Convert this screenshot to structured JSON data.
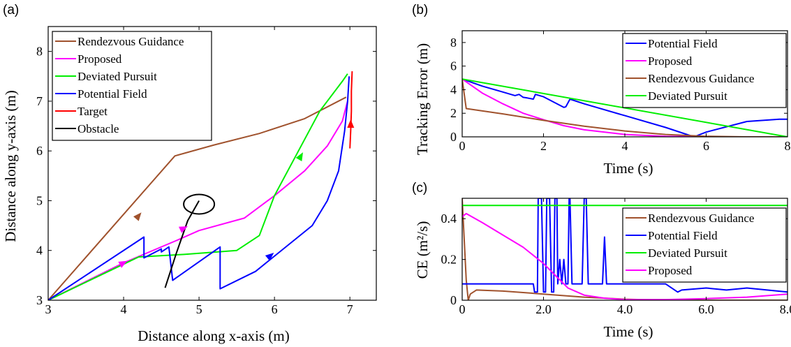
{
  "panels": [
    {
      "tag": "(a)",
      "chart_data": {
        "type": "line",
        "title": "",
        "xlabel": "Distance along x-axis (m)",
        "ylabel": "Distance along y-axis (m)",
        "xlim": [
          3,
          7.35
        ],
        "ylim": [
          3,
          8.5
        ],
        "xticks": [
          3,
          4,
          5,
          6,
          7
        ],
        "yticks": [
          3,
          4,
          5,
          6,
          7,
          8
        ],
        "grid": false,
        "legend_position": "top-left",
        "series": [
          {
            "name": "Rendezvous Guidance",
            "color": "#a0522d",
            "x": [
              3,
              4.68,
              5.2,
              5.8,
              6.4,
              6.95
            ],
            "y": [
              3,
              5.9,
              6.12,
              6.35,
              6.65,
              7.08
            ]
          },
          {
            "name": "Proposed",
            "color": "#ff00ff",
            "x": [
              3,
              4.0,
              4.7,
              5.0,
              5.6,
              6.0,
              6.4,
              6.7,
              6.9,
              6.97
            ],
            "y": [
              3,
              3.75,
              4.2,
              4.4,
              4.65,
              5.1,
              5.6,
              6.1,
              6.6,
              7.0
            ]
          },
          {
            "name": "Deviated Pursuit",
            "color": "#00ee00",
            "x": [
              3,
              4.2,
              4.8,
              5.5,
              5.8,
              6.0,
              6.3,
              6.6,
              6.9,
              6.97
            ],
            "y": [
              3,
              3.87,
              3.92,
              4.0,
              4.3,
              5.1,
              5.95,
              6.8,
              7.4,
              7.55
            ]
          },
          {
            "name": "Potential Field",
            "color": "#0000ff",
            "x": [
              3,
              4.27,
              4.27,
              4.5,
              4.5,
              4.6,
              4.65,
              5.28,
              5.28,
              5.75,
              6.5,
              6.7,
              6.85,
              6.93,
              6.97,
              6.99
            ],
            "y": [
              3,
              4.27,
              3.85,
              4.03,
              3.97,
              4.07,
              3.4,
              4.07,
              3.23,
              3.58,
              4.5,
              5.0,
              5.6,
              6.4,
              7.0,
              7.5
            ]
          },
          {
            "name": "Target",
            "color": "#ff0000",
            "x": [
              7.03,
              7.02,
              7.02,
              7.01,
              7.0
            ],
            "y": [
              7.6,
              7.2,
              6.8,
              6.4,
              6.05
            ]
          },
          {
            "name": "Obstacle",
            "color": "#000000",
            "x": [
              4.55,
              4.7,
              4.85,
              5.0
            ],
            "y": [
              3.25,
              3.95,
              4.6,
              5.0
            ]
          }
        ]
      }
    },
    {
      "tag": "(b)",
      "chart_data": {
        "type": "line",
        "title": "",
        "xlabel": "Time (s)",
        "ylabel": "Tracking Error (m)",
        "xlim": [
          0,
          8
        ],
        "ylim": [
          0,
          9
        ],
        "xticks": [
          0,
          2,
          4,
          6,
          8
        ],
        "yticks": [
          0,
          2,
          4,
          6,
          8
        ],
        "grid": false,
        "legend_position": "top-right",
        "series": [
          {
            "name": "Potential Field",
            "color": "#0000ff",
            "x": [
              0,
              0.5,
              1.0,
              1.3,
              1.4,
              1.5,
              1.6,
              1.75,
              1.8,
              2.0,
              2.5,
              2.55,
              2.65,
              3.0,
              4.0,
              5.0,
              5.7,
              6.0,
              7.0,
              7.8,
              8.0
            ],
            "y": [
              4.9,
              4.3,
              3.8,
              3.5,
              3.6,
              3.35,
              3.3,
              3.2,
              3.6,
              3.4,
              2.5,
              2.55,
              3.2,
              2.8,
              1.8,
              0.8,
              0.0,
              0.4,
              1.3,
              1.5,
              1.5
            ]
          },
          {
            "name": "Proposed",
            "color": "#ff00ff",
            "x": [
              0,
              0.5,
              1.0,
              1.5,
              2.0,
              2.5,
              3.0,
              4.0,
              5.0,
              6.0,
              7.0,
              8.0
            ],
            "y": [
              4.9,
              3.7,
              2.8,
              2.0,
              1.45,
              0.95,
              0.6,
              0.2,
              0.05,
              0.0,
              0.0,
              0.0
            ]
          },
          {
            "name": "Rendezvous Guidance",
            "color": "#a0522d",
            "x": [
              0,
              0.1,
              1.0,
              2.0,
              3.0,
              4.0,
              5.0,
              6.0,
              7.0,
              8.0
            ],
            "y": [
              4.9,
              2.4,
              1.95,
              1.4,
              0.9,
              0.5,
              0.2,
              0.05,
              0.0,
              0.0
            ]
          },
          {
            "name": "Deviated Pursuit",
            "color": "#00ee00",
            "x": [
              0,
              8.0
            ],
            "y": [
              4.9,
              0.0
            ]
          }
        ]
      }
    },
    {
      "tag": "(c)",
      "chart_data": {
        "type": "line",
        "title": "",
        "xlabel": "Time (s)",
        "ylabel": "CE (m²/s)",
        "xlim": [
          0,
          8
        ],
        "ylim": [
          0,
          0.5
        ],
        "xticks": [
          0,
          2,
          4,
          6,
          8
        ],
        "yticks": [
          0,
          0.2,
          0.4
        ],
        "grid": false,
        "legend_position": "bottom-right",
        "series": [
          {
            "name": "Rendezvous Guidance",
            "color": "#a0522d",
            "x": [
              0,
              0.05,
              0.1,
              0.15,
              0.2,
              0.35,
              1.0,
              2.0,
              3.0,
              4.0,
              5.0,
              6.0,
              7.0,
              8.0
            ],
            "y": [
              0.5,
              0.3,
              0.1,
              0.0,
              0.03,
              0.05,
              0.045,
              0.03,
              0.015,
              0.005,
              0.0,
              0.0,
              0.0,
              0.0
            ]
          },
          {
            "name": "Potential Field",
            "color": "#0000ff",
            "x": [
              0,
              1.75,
              1.78,
              1.85,
              1.87,
              1.95,
              2.0,
              2.05,
              2.08,
              2.15,
              2.2,
              2.25,
              2.28,
              2.33,
              2.35,
              2.4,
              2.45,
              2.5,
              2.55,
              2.6,
              2.63,
              2.65,
              2.7,
              2.95,
              3.0,
              3.05,
              3.1,
              3.45,
              3.5,
              3.55,
              5.0,
              5.3,
              5.4,
              6.0,
              6.5,
              7.0,
              7.5,
              8.0
            ],
            "y": [
              0.08,
              0.08,
              0.04,
              0.04,
              0.5,
              0.5,
              0.04,
              0.04,
              0.5,
              0.5,
              0.04,
              0.04,
              0.5,
              0.5,
              0.08,
              0.2,
              0.08,
              0.2,
              0.08,
              0.08,
              0.5,
              0.5,
              0.08,
              0.08,
              0.5,
              0.5,
              0.08,
              0.08,
              0.31,
              0.08,
              0.08,
              0.04,
              0.05,
              0.06,
              0.05,
              0.06,
              0.05,
              0.04
            ]
          },
          {
            "name": "Deviated Pursuit",
            "color": "#00ee00",
            "x": [
              0,
              8.0
            ],
            "y": [
              0.465,
              0.465
            ]
          },
          {
            "name": "Proposed",
            "color": "#ff00ff",
            "x": [
              0,
              0.1,
              0.5,
              1.0,
              1.5,
              2.0,
              2.3,
              2.6,
              3.0,
              3.5,
              4.0,
              5.0,
              6.0,
              7.0,
              8.0
            ],
            "y": [
              0.41,
              0.425,
              0.38,
              0.32,
              0.26,
              0.18,
              0.12,
              0.06,
              0.025,
              0.01,
              0.003,
              0.003,
              0.008,
              0.015,
              0.03
            ]
          }
        ]
      }
    }
  ]
}
